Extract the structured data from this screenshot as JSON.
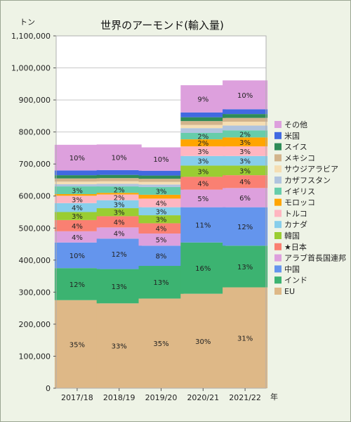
{
  "chart_data": {
    "type": "bar",
    "stacked": true,
    "title": "世界のアーモンド(輸入量)",
    "ylabel": "トン",
    "xlabel": "年",
    "ylim": [
      0,
      1100000
    ],
    "yticks": [
      "0",
      "100,000",
      "200,000",
      "300,000",
      "400,000",
      "500,000",
      "600,000",
      "700,000",
      "800,000",
      "900,000",
      "1,000,000",
      "1,100,000"
    ],
    "grid": true,
    "legend_position": "right",
    "categories": [
      "2017/18",
      "2018/19",
      "2019/20",
      "2020/21",
      "2021/22"
    ],
    "series": [
      {
        "name": "EU",
        "color": "#deb887",
        "values": [
          275000,
          265000,
          280000,
          295000,
          315000
        ],
        "labels": [
          "35%",
          "33%",
          "35%",
          "30%",
          "31%"
        ]
      },
      {
        "name": "インド",
        "color": "#3cb371",
        "values": [
          100000,
          107000,
          102000,
          160000,
          130000
        ],
        "labels": [
          "12%",
          "13%",
          "13%",
          "16%",
          "13%"
        ]
      },
      {
        "name": "中国",
        "color": "#6495ed",
        "values": [
          80000,
          95000,
          63000,
          110000,
          120000
        ],
        "labels": [
          "10%",
          "12%",
          "8%",
          "11%",
          "12%"
        ]
      },
      {
        "name": "アラブ首長国連邦",
        "color": "#dda0dd",
        "values": [
          35000,
          35000,
          38000,
          55000,
          60000
        ],
        "labels": [
          "4%",
          "4%",
          "5%",
          "5%",
          "6%"
        ]
      },
      {
        "name": "★日本",
        "color": "#fa8072",
        "values": [
          35000,
          35000,
          32000,
          40000,
          40000
        ],
        "labels": [
          "4%",
          "4%",
          "4%",
          "4%",
          "4%"
        ]
      },
      {
        "name": "韓国",
        "color": "#9acd32",
        "values": [
          25000,
          25000,
          25000,
          35000,
          30000
        ],
        "labels": [
          "3%",
          "3%",
          "3%",
          "3%",
          "3%"
        ]
      },
      {
        "name": "カナダ",
        "color": "#87ceeb",
        "values": [
          28000,
          25000,
          25000,
          30000,
          30000
        ],
        "labels": [
          "4%",
          "3%",
          "3%",
          "3%",
          "3%"
        ]
      },
      {
        "name": "トルコ",
        "color": "#ffb6c1",
        "values": [
          23000,
          18000,
          27000,
          30000,
          30000
        ],
        "labels": [
          "3%",
          "2%",
          "4%",
          "3%",
          "3%"
        ]
      },
      {
        "name": "モロッコ",
        "color": "#ffa500",
        "values": [
          5000,
          5000,
          12000,
          22000,
          28000
        ],
        "labels": [
          "",
          "",
          "",
          "2%",
          "3%"
        ]
      },
      {
        "name": "イギリス",
        "color": "#66cdaa",
        "values": [
          24000,
          20000,
          24000,
          20000,
          22000
        ],
        "labels": [
          "3%",
          "2%",
          "3%",
          "2%",
          "2%"
        ]
      },
      {
        "name": "カザフスタン",
        "color": "#b0c4de",
        "values": [
          7000,
          8000,
          8000,
          15000,
          15000
        ],
        "labels": [
          "",
          "",
          "",
          "",
          ""
        ]
      },
      {
        "name": "サウジアラビア",
        "color": "#f5deb3",
        "values": [
          8000,
          8000,
          8000,
          10000,
          12000
        ],
        "labels": [
          "",
          "",
          "",
          "",
          ""
        ]
      },
      {
        "name": "メキシコ",
        "color": "#d2b48c",
        "values": [
          10000,
          10000,
          10000,
          12000,
          12000
        ],
        "labels": [
          "",
          "",
          "",
          "",
          ""
        ]
      },
      {
        "name": "スイス",
        "color": "#2e8b57",
        "values": [
          10000,
          10000,
          10000,
          12000,
          12000
        ],
        "labels": [
          "",
          "",
          "",
          "",
          ""
        ]
      },
      {
        "name": "米国",
        "color": "#4169e1",
        "values": [
          15000,
          15000,
          15000,
          15000,
          15000
        ],
        "labels": [
          "",
          "",
          "",
          "",
          ""
        ]
      },
      {
        "name": "その他",
        "color": "#dda0dd",
        "values": [
          80000,
          80000,
          73000,
          85000,
          90000
        ],
        "labels": [
          "10%",
          "10%",
          "10%",
          "9%",
          "10%"
        ]
      }
    ]
  }
}
